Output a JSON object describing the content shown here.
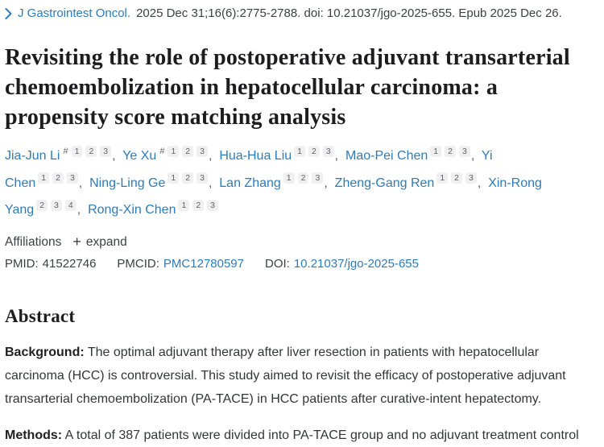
{
  "header": {
    "journal_link": "J Gastrointest Oncol.",
    "citation": "2025 Dec 31;16(6):2775-2788. doi: 10.21037/jgo-2025-655. Epub 2025 Dec 26."
  },
  "title": "Revisiting the role of postoperative adjuvant transarterial chemoembolization in hepatocellular carcinoma: a propensity score matching analysis",
  "equal_contrib_symbol": "#",
  "authors": [
    {
      "name": "Jia-Jun Li",
      "equal_contrib": true,
      "affiliation_sups": [
        "1",
        "2",
        "3"
      ]
    },
    {
      "name": "Ye Xu",
      "equal_contrib": true,
      "affiliation_sups": [
        "1",
        "2",
        "3"
      ]
    },
    {
      "name": "Hua-Hua Liu",
      "equal_contrib": false,
      "affiliation_sups": [
        "1",
        "2",
        "3"
      ]
    },
    {
      "name": "Mao-Pei Chen",
      "equal_contrib": false,
      "affiliation_sups": [
        "1",
        "2",
        "3"
      ]
    },
    {
      "name": "Yi Chen",
      "equal_contrib": false,
      "affiliation_sups": [
        "1",
        "2",
        "3"
      ]
    },
    {
      "name": "Ning-Ling Ge",
      "equal_contrib": false,
      "affiliation_sups": [
        "1",
        "2",
        "3"
      ]
    },
    {
      "name": "Lan Zhang",
      "equal_contrib": false,
      "affiliation_sups": [
        "1",
        "2",
        "3"
      ]
    },
    {
      "name": "Zheng-Gang Ren",
      "equal_contrib": false,
      "affiliation_sups": [
        "1",
        "2",
        "3"
      ]
    },
    {
      "name": "Xin-Rong Yang",
      "equal_contrib": false,
      "affiliation_sups": [
        "2",
        "3",
        "4"
      ]
    },
    {
      "name": "Rong-Xin Chen",
      "equal_contrib": false,
      "affiliation_sups": [
        "1",
        "2",
        "3"
      ]
    }
  ],
  "affiliations": {
    "label": "Affiliations",
    "plus_icon": "+",
    "expand_label": "expand"
  },
  "identifiers": {
    "pmid_label": "PMID:",
    "pmid": "41522746",
    "pmcid_label": "PMCID:",
    "pmcid": "PMC12780597",
    "doi_label": "DOI:",
    "doi": "10.21037/jgo-2025-655"
  },
  "abstract": {
    "heading": "Abstract",
    "sections": [
      {
        "label": "Background:",
        "text": "The optimal adjuvant therapy after liver resection in patients with hepatocellular carcinoma (HCC) is controversial. This study aimed to revisit the efficacy of postoperative adjuvant transarterial chemoembolization (PA-TACE) in HCC patients after curative-intent hepatectomy."
      },
      {
        "label": "Methods:",
        "text": "A total of 387 patients were divided into PA-TACE group and no adjuvant treatment control"
      }
    ]
  },
  "colors": {
    "link_blue": "#2e7bb8",
    "text_dark": "#3c4043",
    "heading_dark": "#1d1d1f",
    "sup_bg": "#f0f0f1",
    "sup_text": "#5f6368",
    "page_bg": "#ffffff"
  }
}
